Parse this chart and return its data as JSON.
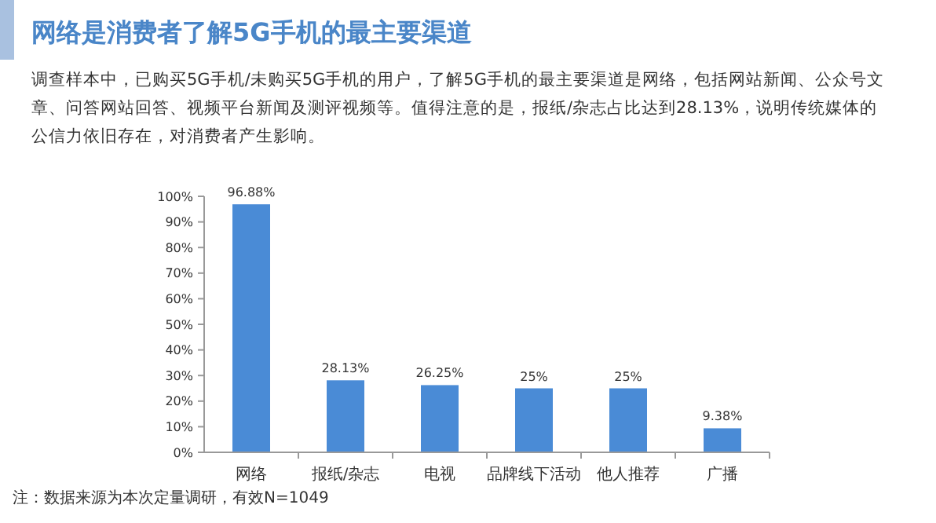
{
  "chart_data": {
    "type": "bar",
    "title": "网络是消费者了解5G手机的最主要渠道",
    "subtitle": "调查样本中，已购买5G手机/未购买5G手机的用户，了解5G手机的最主要渠道是网络，包括网站新闻、公众号文章、问答网站回答、视频平台新闻及测评视频等。值得注意的是，报纸/杂志占比达到28.13%，说明传统媒体的公信力依旧存在，对消费者产生影响。",
    "categories": [
      "网络",
      "报纸/杂志",
      "电视",
      "品牌线下活动",
      "他人推荐",
      "广播"
    ],
    "values": [
      96.88,
      28.13,
      26.25,
      25,
      25,
      9.38
    ],
    "value_labels": [
      "96.88%",
      "28.13%",
      "26.25%",
      "25%",
      "25%",
      "9.38%"
    ],
    "color": "#4a8bd6",
    "ylim": [
      0,
      100
    ],
    "yticks": [
      {
        "value": 0,
        "label": "0%"
      },
      {
        "value": 10,
        "label": "10%"
      },
      {
        "value": 20,
        "label": "20%"
      },
      {
        "value": 30,
        "label": "30%"
      },
      {
        "value": 40,
        "label": "40%"
      },
      {
        "value": 50,
        "label": "50%"
      },
      {
        "value": 60,
        "label": "60%"
      },
      {
        "value": 70,
        "label": "70%"
      },
      {
        "value": 80,
        "label": "80%"
      },
      {
        "value": 90,
        "label": "90%"
      },
      {
        "value": 100,
        "label": "100%"
      }
    ],
    "annotations": [
      "注：数据来源为本次定量调研，有效N=1049"
    ]
  }
}
